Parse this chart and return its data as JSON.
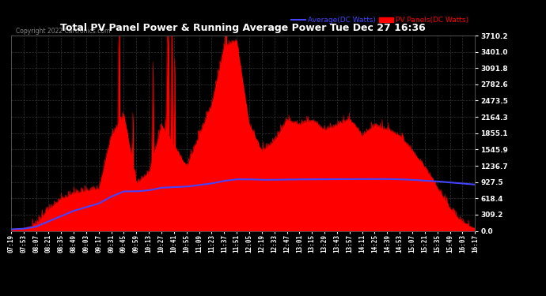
{
  "title": "Total PV Panel Power & Running Average Power Tue Dec 27 16:36",
  "copyright": "Copyright 2022 Cartronics.com",
  "legend_avg": "Average(DC Watts)",
  "legend_pv": "PV Panels(DC Watts)",
  "ymin": 0.0,
  "ymax": 3710.2,
  "yticks": [
    0.0,
    309.2,
    618.4,
    927.5,
    1236.7,
    1545.9,
    1855.1,
    2164.3,
    2473.5,
    2782.6,
    3091.8,
    3401.0,
    3710.2
  ],
  "bg_color": "#000000",
  "pv_color": "#ff0000",
  "avg_color": "#4444ff",
  "title_color": "#ffffff",
  "tick_color": "#ffffff",
  "grid_color": "#555555",
  "copyright_color": "#888888",
  "xtick_labels": [
    "07:19",
    "07:53",
    "08:07",
    "08:21",
    "08:35",
    "08:49",
    "09:03",
    "09:17",
    "09:31",
    "09:45",
    "09:59",
    "10:13",
    "10:27",
    "10:41",
    "10:55",
    "11:09",
    "11:23",
    "11:37",
    "11:51",
    "12:05",
    "12:19",
    "12:33",
    "12:47",
    "13:01",
    "13:15",
    "13:29",
    "13:43",
    "13:57",
    "14:11",
    "14:25",
    "14:39",
    "14:53",
    "15:07",
    "15:21",
    "15:35",
    "15:49",
    "16:03",
    "16:17"
  ],
  "pv_values": [
    30,
    50,
    120,
    400,
    600,
    700,
    750,
    800,
    1800,
    2200,
    900,
    1100,
    2000,
    1600,
    1200,
    1800,
    2400,
    3500,
    3600,
    2000,
    1500,
    1700,
    2100,
    2000,
    2100,
    1900,
    2000,
    2100,
    1800,
    2000,
    1900,
    1800,
    1500,
    1200,
    800,
    400,
    150,
    50
  ],
  "avg_values": [
    30,
    40,
    80,
    180,
    280,
    380,
    450,
    520,
    650,
    750,
    750,
    770,
    820,
    830,
    840,
    870,
    900,
    950,
    980,
    980,
    970,
    970,
    975,
    978,
    980,
    980,
    982,
    985,
    983,
    985,
    985,
    980,
    970,
    955,
    940,
    920,
    900,
    880
  ]
}
